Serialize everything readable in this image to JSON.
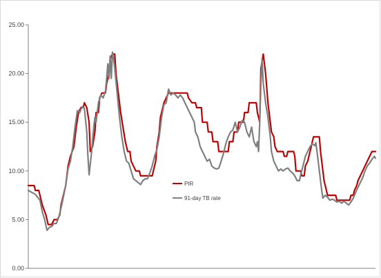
{
  "chart_data": {
    "type": "line",
    "title": "",
    "xlabel": "",
    "ylabel": "",
    "ylim": [
      0,
      25
    ],
    "y_ticks": [
      "0.00",
      "5.00",
      "10.00",
      "15.00",
      "20.00",
      "25.00"
    ],
    "grid": false,
    "legend_position": "center",
    "colors": {
      "pir": "#c00000",
      "tb": "#7f7f7f",
      "axis": "#808080"
    },
    "series": [
      {
        "name": "PIR",
        "color": "#c00000",
        "points": [
          [
            0,
            8.5
          ],
          [
            5,
            8.5
          ],
          [
            6,
            8.0
          ],
          [
            9,
            8.0
          ],
          [
            10,
            7.5
          ],
          [
            12,
            6.5
          ],
          [
            15,
            5.5
          ],
          [
            17,
            4.5
          ],
          [
            20,
            4.5
          ],
          [
            22,
            5.0
          ],
          [
            25,
            5.0
          ],
          [
            27,
            5.5
          ],
          [
            28,
            6.5
          ],
          [
            30,
            7.5
          ],
          [
            32,
            8.5
          ],
          [
            34,
            10.5
          ],
          [
            36,
            11.5
          ],
          [
            39,
            12.5
          ],
          [
            41,
            14.5
          ],
          [
            43,
            16.0
          ],
          [
            45,
            16.5
          ],
          [
            47,
            16.5
          ],
          [
            48,
            17.0
          ],
          [
            50,
            16.5
          ],
          [
            52,
            15.0
          ],
          [
            53,
            12.0
          ],
          [
            55,
            12.5
          ],
          [
            57,
            14.0
          ],
          [
            58,
            16.0
          ],
          [
            60,
            16.0
          ],
          [
            61,
            17.5
          ],
          [
            63,
            18.0
          ],
          [
            66,
            18.0
          ],
          [
            67,
            19.0
          ],
          [
            69,
            20.0
          ],
          [
            70,
            21.5
          ],
          [
            72,
            22.0
          ],
          [
            74,
            22.0
          ],
          [
            75,
            20.0
          ],
          [
            77,
            18.0
          ],
          [
            79,
            16.0
          ],
          [
            81,
            14.5
          ],
          [
            83,
            13.0
          ],
          [
            85,
            12.0
          ],
          [
            87,
            12.0
          ],
          [
            88,
            11.0
          ],
          [
            90,
            10.5
          ],
          [
            92,
            10.0
          ],
          [
            95,
            10.0
          ],
          [
            96,
            9.5
          ],
          [
            106,
            9.5
          ],
          [
            107,
            10.0
          ],
          [
            109,
            11.0
          ],
          [
            110,
            12.5
          ],
          [
            112,
            14.0
          ],
          [
            113,
            15.5
          ],
          [
            116,
            17.0
          ],
          [
            118,
            17.5
          ],
          [
            120,
            18.0
          ],
          [
            136,
            18.0
          ],
          [
            137,
            17.5
          ],
          [
            140,
            17.0
          ],
          [
            143,
            17.0
          ],
          [
            144,
            16.5
          ],
          [
            148,
            16.5
          ],
          [
            149,
            15.0
          ],
          [
            153,
            15.0
          ],
          [
            154,
            14.0
          ],
          [
            157,
            14.0
          ],
          [
            158,
            13.0
          ],
          [
            162,
            13.0
          ],
          [
            163,
            12.0
          ],
          [
            171,
            12.0
          ],
          [
            172,
            13.0
          ],
          [
            175,
            13.0
          ],
          [
            176,
            14.0
          ],
          [
            179,
            14.0
          ],
          [
            180,
            15.0
          ],
          [
            184,
            15.0
          ],
          [
            185,
            16.0
          ],
          [
            188,
            16.0
          ],
          [
            189,
            17.0
          ],
          [
            195,
            17.0
          ],
          [
            196,
            16.0
          ],
          [
            198,
            15.0
          ],
          [
            199,
            20.5
          ],
          [
            201,
            22.0
          ],
          [
            203,
            20.0
          ],
          [
            205,
            17.0
          ],
          [
            207,
            15.0
          ],
          [
            208,
            14.0
          ],
          [
            210,
            13.5
          ],
          [
            211,
            12.5
          ],
          [
            213,
            12.0
          ],
          [
            218,
            12.0
          ],
          [
            219,
            11.5
          ],
          [
            221,
            11.5
          ],
          [
            222,
            12.0
          ],
          [
            227,
            12.0
          ],
          [
            228,
            11.5
          ],
          [
            229,
            10.0
          ],
          [
            233,
            10.0
          ],
          [
            234,
            9.5
          ],
          [
            236,
            9.5
          ],
          [
            237,
            10.5
          ],
          [
            239,
            11.0
          ],
          [
            241,
            12.0
          ],
          [
            242,
            12.5
          ],
          [
            243,
            13.0
          ],
          [
            244,
            13.5
          ],
          [
            249,
            13.5
          ],
          [
            250,
            12.0
          ],
          [
            251,
            11.0
          ],
          [
            253,
            9.0
          ],
          [
            255,
            8.0
          ],
          [
            256,
            7.5
          ],
          [
            263,
            7.5
          ],
          [
            264,
            7.0
          ],
          [
            275,
            7.0
          ],
          [
            276,
            7.5
          ],
          [
            278,
            7.5
          ],
          [
            279,
            8.0
          ],
          [
            281,
            8.5
          ],
          [
            282,
            9.0
          ],
          [
            284,
            9.5
          ],
          [
            286,
            10.0
          ],
          [
            288,
            10.5
          ],
          [
            290,
            11.0
          ],
          [
            292,
            11.5
          ],
          [
            294,
            12.0
          ],
          [
            297,
            12.0
          ]
        ]
      },
      {
        "name": "91-day TB rate",
        "color": "#7f7f7f",
        "points": [
          [
            0,
            8.0
          ],
          [
            3,
            7.8
          ],
          [
            6,
            7.6
          ],
          [
            8,
            7.3
          ],
          [
            10,
            7.0
          ],
          [
            12,
            5.8
          ],
          [
            14,
            5.0
          ],
          [
            16,
            3.9
          ],
          [
            18,
            4.2
          ],
          [
            20,
            4.3
          ],
          [
            22,
            4.6
          ],
          [
            24,
            4.6
          ],
          [
            26,
            5.2
          ],
          [
            28,
            6.2
          ],
          [
            30,
            7.3
          ],
          [
            32,
            8.5
          ],
          [
            34,
            10.2
          ],
          [
            36,
            11.0
          ],
          [
            38,
            12.5
          ],
          [
            40,
            14.5
          ],
          [
            42,
            16.2
          ],
          [
            44,
            16.0
          ],
          [
            46,
            16.6
          ],
          [
            48,
            16.4
          ],
          [
            50,
            14.0
          ],
          [
            51,
            11.5
          ],
          [
            52,
            9.6
          ],
          [
            54,
            11.8
          ],
          [
            56,
            14.5
          ],
          [
            57,
            15.5
          ],
          [
            58,
            15.0
          ],
          [
            60,
            17.0
          ],
          [
            62,
            17.8
          ],
          [
            64,
            17.5
          ],
          [
            66,
            18.2
          ],
          [
            67,
            19.5
          ],
          [
            68,
            21.0
          ],
          [
            69,
            19.5
          ],
          [
            70,
            21.8
          ],
          [
            71,
            19.5
          ],
          [
            72,
            22.2
          ],
          [
            73,
            21.5
          ],
          [
            74,
            20.5
          ],
          [
            76,
            18.0
          ],
          [
            78,
            15.5
          ],
          [
            80,
            13.5
          ],
          [
            82,
            12.0
          ],
          [
            84,
            11.0
          ],
          [
            86,
            10.8
          ],
          [
            88,
            10.0
          ],
          [
            90,
            9.2
          ],
          [
            92,
            9.0
          ],
          [
            94,
            8.8
          ],
          [
            96,
            8.6
          ],
          [
            98,
            9.0
          ],
          [
            100,
            9.2
          ],
          [
            102,
            9.2
          ],
          [
            104,
            9.8
          ],
          [
            106,
            10.5
          ],
          [
            108,
            11.5
          ],
          [
            110,
            12.2
          ],
          [
            112,
            13.5
          ],
          [
            114,
            15.5
          ],
          [
            116,
            16.8
          ],
          [
            118,
            17.0
          ],
          [
            120,
            18.4
          ],
          [
            122,
            17.8
          ],
          [
            124,
            18.0
          ],
          [
            126,
            17.8
          ],
          [
            128,
            17.5
          ],
          [
            130,
            17.8
          ],
          [
            132,
            17.5
          ],
          [
            134,
            17.0
          ],
          [
            136,
            16.5
          ],
          [
            138,
            16.0
          ],
          [
            140,
            15.5
          ],
          [
            142,
            15.0
          ],
          [
            143,
            14.0
          ],
          [
            145,
            13.5
          ],
          [
            147,
            12.5
          ],
          [
            149,
            12.0
          ],
          [
            151,
            11.5
          ],
          [
            153,
            11.0
          ],
          [
            155,
            11.2
          ],
          [
            157,
            10.5
          ],
          [
            159,
            10.3
          ],
          [
            161,
            10.2
          ],
          [
            163,
            10.3
          ],
          [
            165,
            11.0
          ],
          [
            167,
            11.8
          ],
          [
            169,
            12.8
          ],
          [
            171,
            13.5
          ],
          [
            173,
            14.0
          ],
          [
            175,
            14.2
          ],
          [
            177,
            15.0
          ],
          [
            179,
            14.0
          ],
          [
            181,
            14.5
          ],
          [
            183,
            15.2
          ],
          [
            185,
            15.0
          ],
          [
            187,
            14.0
          ],
          [
            189,
            13.5
          ],
          [
            191,
            14.5
          ],
          [
            193,
            13.0
          ],
          [
            195,
            12.5
          ],
          [
            196,
            13.0
          ],
          [
            197,
            12.0
          ],
          [
            198,
            15.0
          ],
          [
            199,
            19.0
          ],
          [
            200,
            21.5
          ],
          [
            201,
            19.0
          ],
          [
            203,
            17.0
          ],
          [
            205,
            15.5
          ],
          [
            207,
            13.5
          ],
          [
            208,
            12.0
          ],
          [
            210,
            11.0
          ],
          [
            212,
            10.5
          ],
          [
            214,
            10.0
          ],
          [
            216,
            10.2
          ],
          [
            218,
            10.0
          ],
          [
            220,
            10.2
          ],
          [
            222,
            10.3
          ],
          [
            224,
            10.0
          ],
          [
            226,
            9.8
          ],
          [
            228,
            9.5
          ],
          [
            230,
            9.0
          ],
          [
            232,
            9.0
          ],
          [
            233,
            9.6
          ],
          [
            235,
            10.5
          ],
          [
            237,
            11.5
          ],
          [
            239,
            12.0
          ],
          [
            241,
            12.5
          ],
          [
            243,
            12.8
          ],
          [
            245,
            12.6
          ],
          [
            246,
            12.9
          ],
          [
            247,
            12.0
          ],
          [
            248,
            11.0
          ],
          [
            249,
            10.0
          ],
          [
            250,
            9.0
          ],
          [
            251,
            8.0
          ],
          [
            252,
            7.2
          ],
          [
            254,
            7.5
          ],
          [
            256,
            7.3
          ],
          [
            258,
            7.0
          ],
          [
            260,
            7.1
          ],
          [
            262,
            7.0
          ],
          [
            264,
            6.8
          ],
          [
            266,
            6.9
          ],
          [
            268,
            6.7
          ],
          [
            270,
            6.9
          ],
          [
            272,
            6.7
          ],
          [
            274,
            6.5
          ],
          [
            276,
            6.8
          ],
          [
            278,
            7.2
          ],
          [
            280,
            7.8
          ],
          [
            282,
            8.3
          ],
          [
            284,
            8.8
          ],
          [
            286,
            9.3
          ],
          [
            288,
            10.0
          ],
          [
            290,
            10.5
          ],
          [
            292,
            10.8
          ],
          [
            294,
            11.2
          ],
          [
            296,
            11.5
          ],
          [
            297,
            11.3
          ]
        ]
      }
    ]
  }
}
